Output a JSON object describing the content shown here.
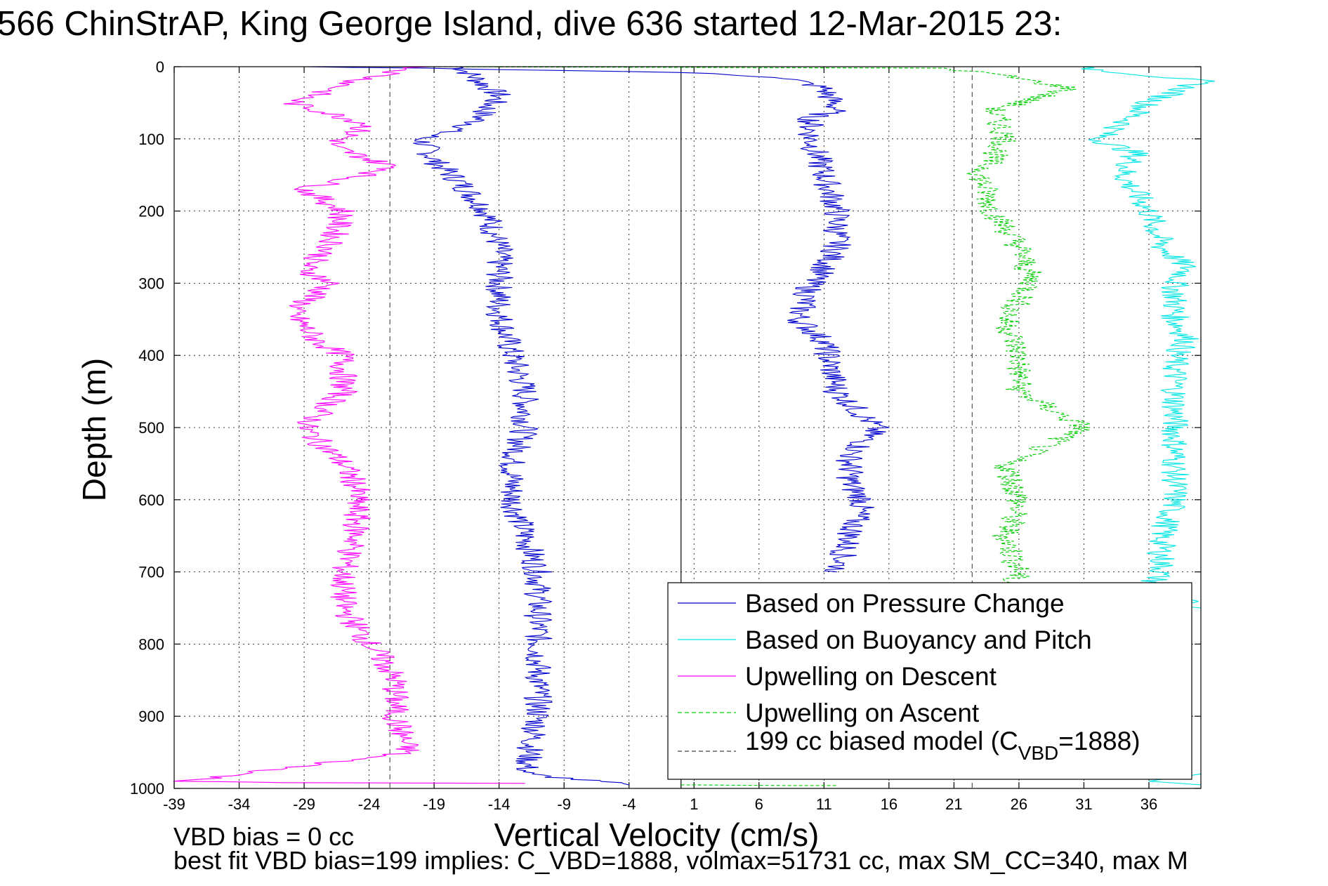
{
  "chart_data": {
    "type": "line",
    "title": "566 ChinStrAP, King George Island, dive 636 started 12-Mar-2015 23:",
    "xlabel": "Vertical Velocity (cm/s)",
    "ylabel": "Depth (m)",
    "xlim": [
      -39,
      40
    ],
    "ylim": [
      0,
      1000
    ],
    "y_reversed": true,
    "grid": true,
    "x_ticks": [
      "-39",
      "-34",
      "-29",
      "-24",
      "-19",
      "-14",
      "-9",
      "-4",
      "1",
      "6",
      "11",
      "16",
      "21",
      "26",
      "31",
      "36"
    ],
    "y_ticks": [
      "0",
      "100",
      "200",
      "300",
      "400",
      "500",
      "600",
      "700",
      "800",
      "900",
      "1000"
    ],
    "legend_position": "bottom-right",
    "vertical_lines": [
      {
        "x": 0,
        "style": "solid",
        "color": "#000000"
      }
    ],
    "series": [
      {
        "name": "Based on Pressure Change",
        "color": "#0000cc",
        "style": "solid",
        "segments": [
          {
            "x": [
              -17,
              -14,
              -16,
              -20,
              -19,
              -17,
              -15,
              -14,
              -14,
              -14,
              -13,
              -12,
              -12,
              -13,
              -13,
              -12,
              -11,
              -11,
              -11,
              -11,
              -12,
              -4
            ],
            "y": [
              0,
              40,
              80,
              100,
              130,
              160,
              200,
              250,
              300,
              340,
              400,
              450,
              500,
              550,
              600,
              650,
              700,
              750,
              800,
              900,
              980,
              995
            ]
          },
          {
            "x": [
              -30,
              -20,
              -10,
              0,
              8,
              11,
              12,
              10,
              10,
              11,
              12,
              12,
              11,
              10,
              9,
              11,
              12,
              15,
              13,
              13,
              14,
              13,
              12
            ],
            "y": [
              0,
              2,
              5,
              8,
              15,
              30,
              60,
              70,
              100,
              150,
              200,
              250,
              280,
              300,
              350,
              380,
              450,
              500,
              540,
              580,
              600,
              650,
              700
            ]
          }
        ]
      },
      {
        "name": "Based on Buoyancy and Pitch",
        "color": "#00e5e5",
        "style": "solid",
        "segments": [
          {
            "x": [
              30,
              40,
              36,
              34,
              32,
              35,
              34,
              36,
              37,
              39,
              38,
              38,
              39,
              38,
              38,
              38,
              38,
              38,
              37,
              37,
              36,
              40
            ],
            "y": [
              0,
              20,
              50,
              80,
              100,
              120,
              150,
              200,
              250,
              280,
              300,
              350,
              380,
              400,
              450,
              500,
              550,
              600,
              650,
              700,
              720,
              750
            ]
          },
          {
            "x": [
              40,
              36,
              40
            ],
            "y": [
              980,
              990,
              995
            ]
          }
        ]
      },
      {
        "name": "Upwelling on Descent",
        "color": "#ff00ff",
        "style": "solid",
        "segments": [
          {
            "x": [
              -20,
              -25,
              -30,
              -24,
              -27,
              -22,
              -29,
              -26,
              -27,
              -29,
              -27,
              -30,
              -28,
              -26,
              -26,
              -29,
              -26,
              -25,
              -25,
              -25,
              -26,
              -26,
              -24,
              -23,
              -22,
              -22,
              -21,
              -38,
              -30,
              -12
            ],
            "y": [
              0,
              20,
              50,
              80,
              110,
              140,
              170,
              200,
              250,
              280,
              300,
              340,
              380,
              400,
              450,
              500,
              550,
              580,
              600,
              650,
              700,
              750,
              800,
              820,
              850,
              900,
              950,
              990,
              992,
              993
            ]
          }
        ]
      },
      {
        "name": "Upwelling on Ascent",
        "color": "#00cc00",
        "style": "dashed",
        "segments": [
          {
            "x": [
              -20,
              0,
              20,
              24,
              30,
              24,
              25,
              23,
              24,
              26,
              27,
              25,
              26,
              26,
              31,
              25,
              26,
              25,
              26,
              25,
              26,
              26
            ],
            "y": [
              0,
              1,
              2,
              10,
              30,
              60,
              100,
              150,
              200,
              250,
              300,
              350,
              400,
              450,
              500,
              550,
              600,
              650,
              700,
              720,
              750,
              760
            ]
          },
          {
            "x": [
              0,
              8,
              12
            ],
            "y": [
              995,
              996,
              996
            ]
          }
        ]
      },
      {
        "name": "199 cc biased model (CVBD=1888)",
        "color": "#444444",
        "style": "dashed",
        "segments": [
          {
            "x": [
              -22.4,
              -22.4
            ],
            "y": [
              0,
              1000
            ]
          },
          {
            "x": [
              22.4,
              22.4
            ],
            "y": [
              0,
              1000
            ]
          }
        ]
      }
    ],
    "annotations": [
      "VBD bias = 0 cc",
      "best fit VBD bias=199 implies: C_VBD=1888, volmax=51731 cc, max SM_CC=340, max M"
    ],
    "legend": {
      "items": [
        "Based on Pressure Change",
        "Based on Buoyancy and Pitch",
        "Upwelling on Descent",
        "Upwelling on Ascent"
      ],
      "model_prefix": "199 cc biased model (C",
      "model_sub": "VBD",
      "model_suffix": "=1888)"
    }
  }
}
